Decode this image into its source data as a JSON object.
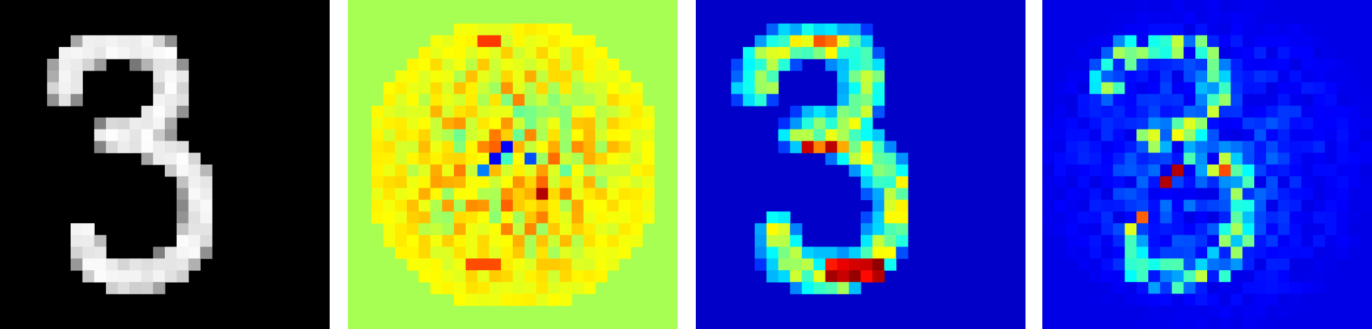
{
  "figure": {
    "grid_size": 28,
    "panels": [
      {
        "name": "input-digit-panel",
        "kind": "grayscale-digit",
        "colormap": "gray",
        "background": "#000000"
      },
      {
        "name": "signed-saliency-panel",
        "kind": "signed-heatmap",
        "colormap": "jet",
        "background": "#a6ff52"
      },
      {
        "name": "smooth-saliency-panel",
        "kind": "positive-heatmap",
        "colormap": "jet",
        "background": "#0000c8"
      },
      {
        "name": "noisy-saliency-panel",
        "kind": "noisy-heatmap",
        "colormap": "jet",
        "background": "#0000aa"
      }
    ]
  }
}
